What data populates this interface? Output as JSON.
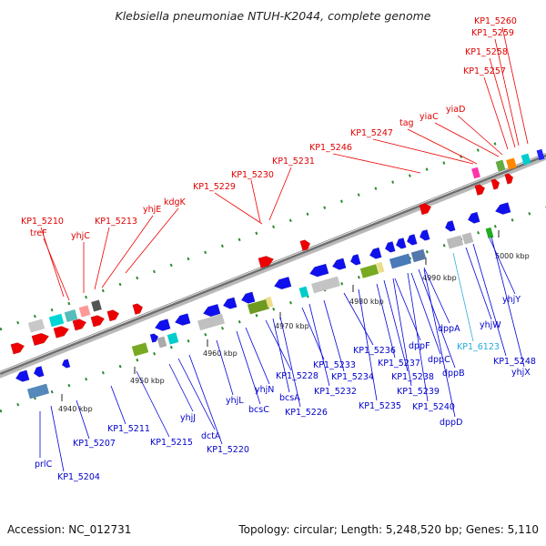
{
  "title": "Klebsiella pneumoniae NTUH-K2044, complete genome",
  "footer": {
    "accession": "Accession: NC_012731",
    "summary": "Topology: circular; Length: 5,248,520 bp; Genes: 5,110"
  },
  "ticks": [
    "4940 kbp",
    "4950 kbp",
    "4960 kbp",
    "4970 kbp",
    "4980 kbp",
    "4990 kbp",
    "5000 kbp"
  ],
  "labels_top": [
    "KP1_5210",
    "treF",
    "yhjC",
    "KP1_5213",
    "yhjE",
    "kdgK",
    "KP1_5229",
    "KP1_5230",
    "KP1_5231",
    "KP1_5246",
    "KP1_5247",
    "tag",
    "yiaC",
    "yiaD",
    "KP1_5257",
    "KP1_5258",
    "KP1_5259",
    "KP1_5260"
  ],
  "labels_bottom": [
    "prlC",
    "KP1_5204",
    "KP1_5207",
    "KP1_5211",
    "KP1_5215",
    "yhjJ",
    "dctA",
    "KP1_5220",
    "yhjL",
    "bcsC",
    "yhjN",
    "KP1_5228",
    "bcsA",
    "KP1_5226",
    "KP1_5233",
    "KP1_5234",
    "KP1_5232",
    "KP1_5236",
    "KP1_5235",
    "KP1_5237",
    "dppF",
    "KP1_5238",
    "dppC",
    "dppB",
    "KP1_5239",
    "KP1_5240",
    "dppD",
    "dppA",
    "KP1_6123",
    "yhjW",
    "KP1_5248",
    "yhjY",
    "yhjX"
  ]
}
